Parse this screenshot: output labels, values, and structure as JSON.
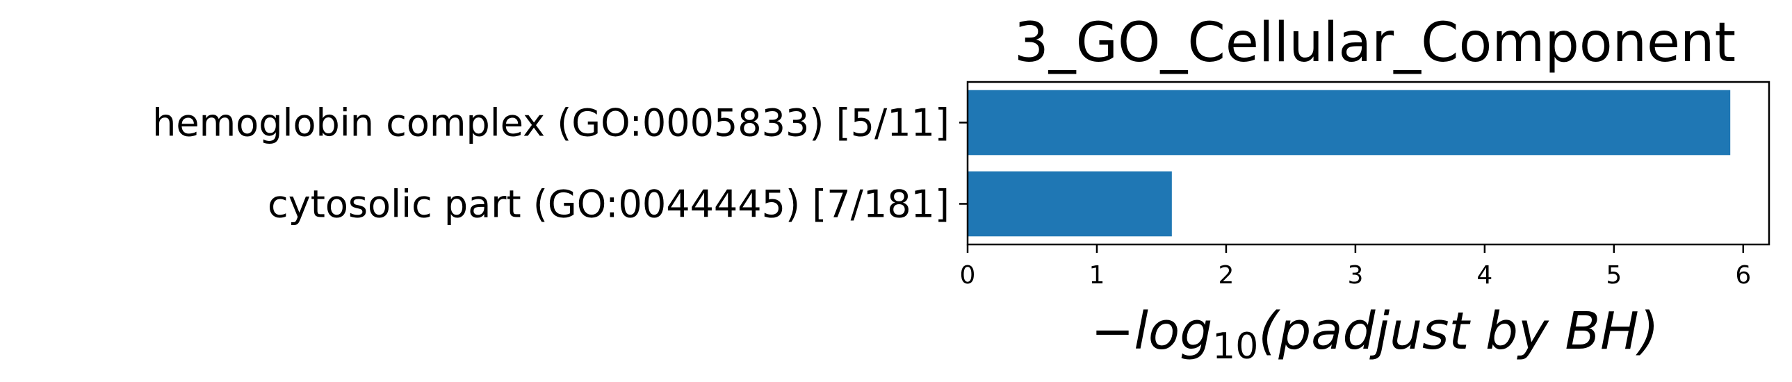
{
  "chart_data": {
    "type": "bar",
    "orientation": "horizontal",
    "title": "3_GO_Cellular_Component",
    "xlabel": {
      "prefix": "−",
      "log": "log",
      "subscript": "10",
      "body": "(padjust by BH)"
    },
    "ylabel": "",
    "categories": [
      "hemoglobin complex (GO:0005833) [5/11]",
      "cytosolic part (GO:0044445) [7/181]"
    ],
    "values": [
      5.9,
      1.58
    ],
    "xlim": [
      0,
      6.2
    ],
    "xticks": [
      "0",
      "1",
      "2",
      "3",
      "4",
      "5",
      "6"
    ],
    "grid": false,
    "bar_color": "#1f77b4"
  }
}
